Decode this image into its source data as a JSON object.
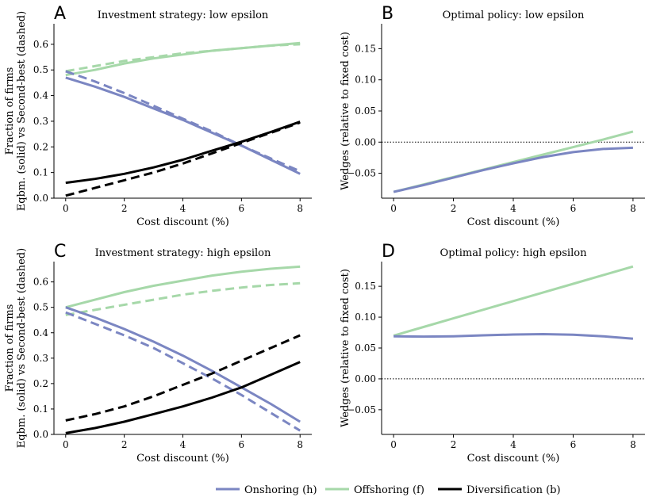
{
  "colors": {
    "onshoring": "#7b86c2",
    "offshoring": "#a6d8a9",
    "diversification": "#000000"
  },
  "legend": [
    {
      "key": "onshoring",
      "label": "Onshoring (h)"
    },
    {
      "key": "offshoring",
      "label": "Offshoring (f)"
    },
    {
      "key": "diversification",
      "label": "Diversification (b)"
    }
  ],
  "chart_data": [
    {
      "letter": "A",
      "type": "line",
      "title": "Investment strategy: low epsilon",
      "xlabel": "Cost discount (%)",
      "ylabel": [
        "Fraction of firms",
        "Eqbm. (solid) vs Second-best (dashed)"
      ],
      "xlim": [
        -0.4,
        8.4
      ],
      "ylim": [
        0,
        0.68
      ],
      "xticks": [
        "0",
        "2",
        "4",
        "6",
        "8"
      ],
      "yticks": [
        "0.0",
        "0.1",
        "0.2",
        "0.3",
        "0.4",
        "0.5",
        "0.6"
      ],
      "grid": false,
      "x": [
        0,
        1,
        2,
        3,
        4,
        5,
        6,
        7,
        8
      ],
      "series": [
        {
          "key": "offshoring",
          "style": "solid",
          "values": [
            0.48,
            0.5,
            0.525,
            0.545,
            0.56,
            0.575,
            0.585,
            0.595,
            0.605
          ]
        },
        {
          "key": "offshoring",
          "style": "dashed",
          "values": [
            0.495,
            0.515,
            0.535,
            0.55,
            0.565,
            0.575,
            0.585,
            0.595,
            0.6
          ]
        },
        {
          "key": "onshoring",
          "style": "solid",
          "values": [
            0.47,
            0.435,
            0.395,
            0.35,
            0.305,
            0.255,
            0.205,
            0.15,
            0.095
          ]
        },
        {
          "key": "onshoring",
          "style": "dashed",
          "values": [
            0.495,
            0.455,
            0.41,
            0.36,
            0.31,
            0.26,
            0.205,
            0.155,
            0.105
          ]
        },
        {
          "key": "diversification",
          "style": "solid",
          "values": [
            0.06,
            0.075,
            0.095,
            0.12,
            0.15,
            0.185,
            0.22,
            0.258,
            0.298
          ]
        },
        {
          "key": "diversification",
          "style": "dashed",
          "values": [
            0.01,
            0.04,
            0.07,
            0.1,
            0.135,
            0.175,
            0.215,
            0.255,
            0.295
          ]
        }
      ]
    },
    {
      "letter": "B",
      "type": "line",
      "title": "Optimal policy: low epsilon",
      "xlabel": "Cost discount (%)",
      "ylabel": [
        "Wedges (relative to fixed cost)"
      ],
      "xlim": [
        -0.4,
        8.4
      ],
      "ylim": [
        -0.09,
        0.19
      ],
      "xticks": [
        "0",
        "2",
        "4",
        "6",
        "8"
      ],
      "yticks": [
        "−0.05",
        "0.00",
        "0.05",
        "0.10",
        "0.15"
      ],
      "reference_line": 0,
      "grid": false,
      "x": [
        0,
        1,
        2,
        3,
        4,
        5,
        6,
        7,
        8
      ],
      "series": [
        {
          "key": "offshoring",
          "style": "solid",
          "values": [
            -0.08,
            -0.068,
            -0.056,
            -0.044,
            -0.032,
            -0.02,
            -0.008,
            0.004,
            0.017
          ]
        },
        {
          "key": "onshoring",
          "style": "solid",
          "values": [
            -0.08,
            -0.069,
            -0.057,
            -0.045,
            -0.034,
            -0.024,
            -0.016,
            -0.011,
            -0.009
          ]
        }
      ]
    },
    {
      "letter": "C",
      "type": "line",
      "title": "Investment strategy: high epsilon",
      "xlabel": "Cost discount (%)",
      "ylabel": [
        "Fraction of firms",
        "Eqbm. (solid) vs Second-best (dashed)"
      ],
      "xlim": [
        -0.4,
        8.4
      ],
      "ylim": [
        0,
        0.68
      ],
      "xticks": [
        "0",
        "2",
        "4",
        "6",
        "8"
      ],
      "yticks": [
        "0.0",
        "0.1",
        "0.2",
        "0.3",
        "0.4",
        "0.5",
        "0.6"
      ],
      "grid": false,
      "x": [
        0,
        1,
        2,
        3,
        4,
        5,
        6,
        7,
        8
      ],
      "series": [
        {
          "key": "offshoring",
          "style": "solid",
          "values": [
            0.5,
            0.53,
            0.56,
            0.585,
            0.605,
            0.625,
            0.64,
            0.652,
            0.66
          ]
        },
        {
          "key": "offshoring",
          "style": "dashed",
          "values": [
            0.47,
            0.49,
            0.51,
            0.53,
            0.55,
            0.565,
            0.578,
            0.588,
            0.595
          ]
        },
        {
          "key": "onshoring",
          "style": "solid",
          "values": [
            0.5,
            0.46,
            0.415,
            0.365,
            0.31,
            0.25,
            0.185,
            0.12,
            0.05
          ]
        },
        {
          "key": "onshoring",
          "style": "dashed",
          "values": [
            0.48,
            0.435,
            0.39,
            0.34,
            0.28,
            0.22,
            0.155,
            0.085,
            0.015
          ]
        },
        {
          "key": "diversification",
          "style": "solid",
          "values": [
            0.005,
            0.025,
            0.05,
            0.08,
            0.11,
            0.145,
            0.185,
            0.235,
            0.285
          ]
        },
        {
          "key": "diversification",
          "style": "dashed",
          "values": [
            0.055,
            0.08,
            0.11,
            0.15,
            0.195,
            0.24,
            0.29,
            0.34,
            0.39
          ]
        }
      ]
    },
    {
      "letter": "D",
      "type": "line",
      "title": "Optimal policy: high epsilon",
      "xlabel": "Cost discount (%)",
      "ylabel": [
        "Wedges (relative to fixed cost)"
      ],
      "xlim": [
        -0.4,
        8.4
      ],
      "ylim": [
        -0.09,
        0.19
      ],
      "xticks": [
        "0",
        "2",
        "4",
        "6",
        "8"
      ],
      "yticks": [
        "−0.05",
        "0.00",
        "0.05",
        "0.10",
        "0.15"
      ],
      "reference_line": 0,
      "grid": false,
      "x": [
        0,
        1,
        2,
        3,
        4,
        5,
        6,
        7,
        8
      ],
      "series": [
        {
          "key": "offshoring",
          "style": "solid",
          "values": [
            0.07,
            0.084,
            0.098,
            0.112,
            0.126,
            0.14,
            0.154,
            0.168,
            0.182
          ]
        },
        {
          "key": "onshoring",
          "style": "solid",
          "values": [
            0.069,
            0.0685,
            0.069,
            0.0705,
            0.0718,
            0.0725,
            0.0715,
            0.069,
            0.065
          ]
        }
      ]
    }
  ]
}
